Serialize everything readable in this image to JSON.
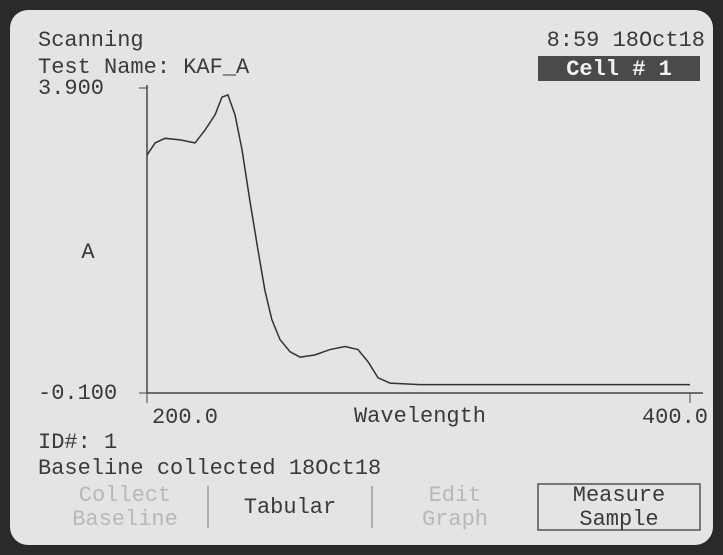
{
  "screen": {
    "status": "Scanning",
    "test_name": "Test Name: KAF_A",
    "clock": "8:59 18Oct18",
    "cell": "Cell # 1",
    "id": "ID#: 1",
    "baseline": "Baseline collected 18Oct18",
    "buttons": [
      {
        "lines": [
          "Collect",
          "Baseline"
        ]
      },
      {
        "lines": [
          "Tabular"
        ]
      },
      {
        "lines": [
          "Edit",
          "Graph"
        ]
      },
      {
        "lines": [
          "Measure",
          "Sample"
        ]
      }
    ]
  },
  "chart_data": {
    "type": "line",
    "y_label": "A",
    "x_label": "Wavelength",
    "x": [
      200,
      203,
      206.6,
      212.2,
      217.7,
      221.4,
      225.1,
      227.6,
      229.8,
      232.4,
      235,
      237.9,
      240.9,
      243.4,
      246,
      249,
      252.7,
      256.4,
      261.9,
      267.4,
      272.9,
      277.7,
      281.4,
      285.1,
      289.5,
      300.5,
      400
    ],
    "values": [
      3.02,
      3.18,
      3.24,
      3.22,
      3.18,
      3.35,
      3.55,
      3.78,
      3.81,
      3.55,
      3.09,
      2.42,
      1.77,
      1.25,
      0.86,
      0.6,
      0.44,
      0.37,
      0.4,
      0.47,
      0.51,
      0.47,
      0.31,
      0.1,
      0.03,
      0.01,
      0.01
    ],
    "color": "#333333",
    "xlim": [
      200,
      400
    ],
    "ylim": [
      -0.1,
      3.9
    ],
    "xticks": [
      {
        "value": 200,
        "label": "200.0"
      },
      {
        "value": 400,
        "label": "400.0"
      }
    ],
    "yticks": [
      {
        "value": -0.1,
        "label": "-0.100"
      },
      {
        "value": 3.9,
        "label": "3.900"
      }
    ]
  }
}
